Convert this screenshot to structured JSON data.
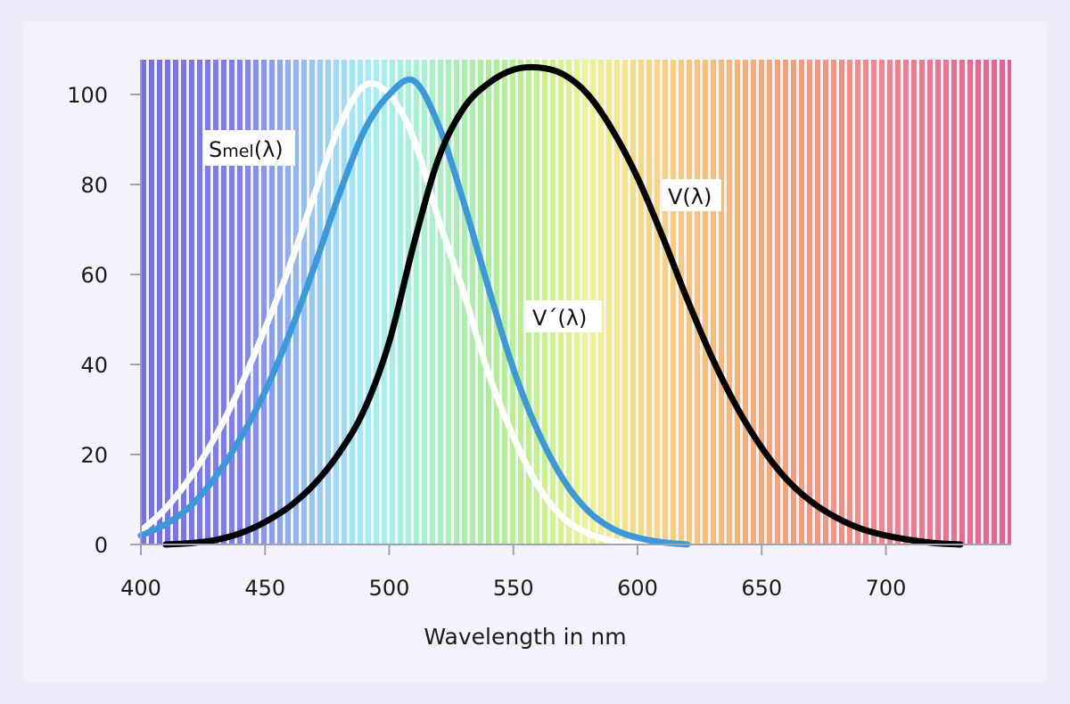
{
  "chart_data": {
    "type": "line",
    "title": "",
    "xlabel": "Wavelength in nm",
    "ylabel": "",
    "xlim": [
      400,
      750
    ],
    "ylim": [
      0,
      107
    ],
    "xticks": [
      400,
      450,
      500,
      550,
      600,
      650,
      700
    ],
    "yticks": [
      0,
      20,
      40,
      60,
      80,
      100
    ],
    "grid": false,
    "background": "visible spectrum (violet to red) drawn as vertical stripes",
    "series": [
      {
        "name": "Smel(λ)",
        "label_main": "S",
        "label_sub": "mel",
        "label_tail": "(λ)",
        "color": "#ffffff",
        "x": [
          400,
          410,
          420,
          430,
          440,
          450,
          460,
          470,
          480,
          490,
          500,
          510,
          520,
          530,
          540,
          550,
          560,
          570,
          580,
          590,
          600,
          610
        ],
        "y": [
          3,
          8,
          15,
          24,
          35,
          48,
          62,
          78,
          93,
          102,
          100,
          90,
          72,
          56,
          38,
          24,
          13,
          6,
          2.5,
          0.8,
          0.2,
          0
        ]
      },
      {
        "name": "V´(λ)",
        "color": "#3b99db",
        "x": [
          400,
          410,
          420,
          430,
          440,
          450,
          460,
          470,
          480,
          490,
          500,
          510,
          520,
          530,
          540,
          550,
          560,
          570,
          580,
          590,
          600,
          610,
          620
        ],
        "y": [
          2,
          4.5,
          8.5,
          15,
          23.5,
          34,
          47,
          62,
          78,
          92,
          100,
          103,
          93,
          76,
          57,
          39,
          25,
          14.5,
          7.5,
          3.5,
          1.5,
          0.5,
          0
        ]
      },
      {
        "name": "V(λ)",
        "color": "#000000",
        "x": [
          410,
          420,
          430,
          440,
          450,
          460,
          470,
          480,
          490,
          500,
          510,
          520,
          530,
          540,
          550,
          560,
          570,
          580,
          590,
          600,
          610,
          620,
          630,
          640,
          650,
          660,
          670,
          680,
          690,
          700,
          710,
          720,
          730
        ],
        "y": [
          0,
          0.3,
          1,
          2.5,
          5,
          8.5,
          13.5,
          20.5,
          30,
          45,
          67,
          86,
          97,
          102.5,
          105.5,
          106,
          104.5,
          100,
          92,
          81.5,
          68.5,
          54.5,
          41.5,
          30.5,
          21.5,
          14.5,
          9.5,
          6,
          3.5,
          2,
          1,
          0.3,
          0
        ]
      }
    ]
  }
}
